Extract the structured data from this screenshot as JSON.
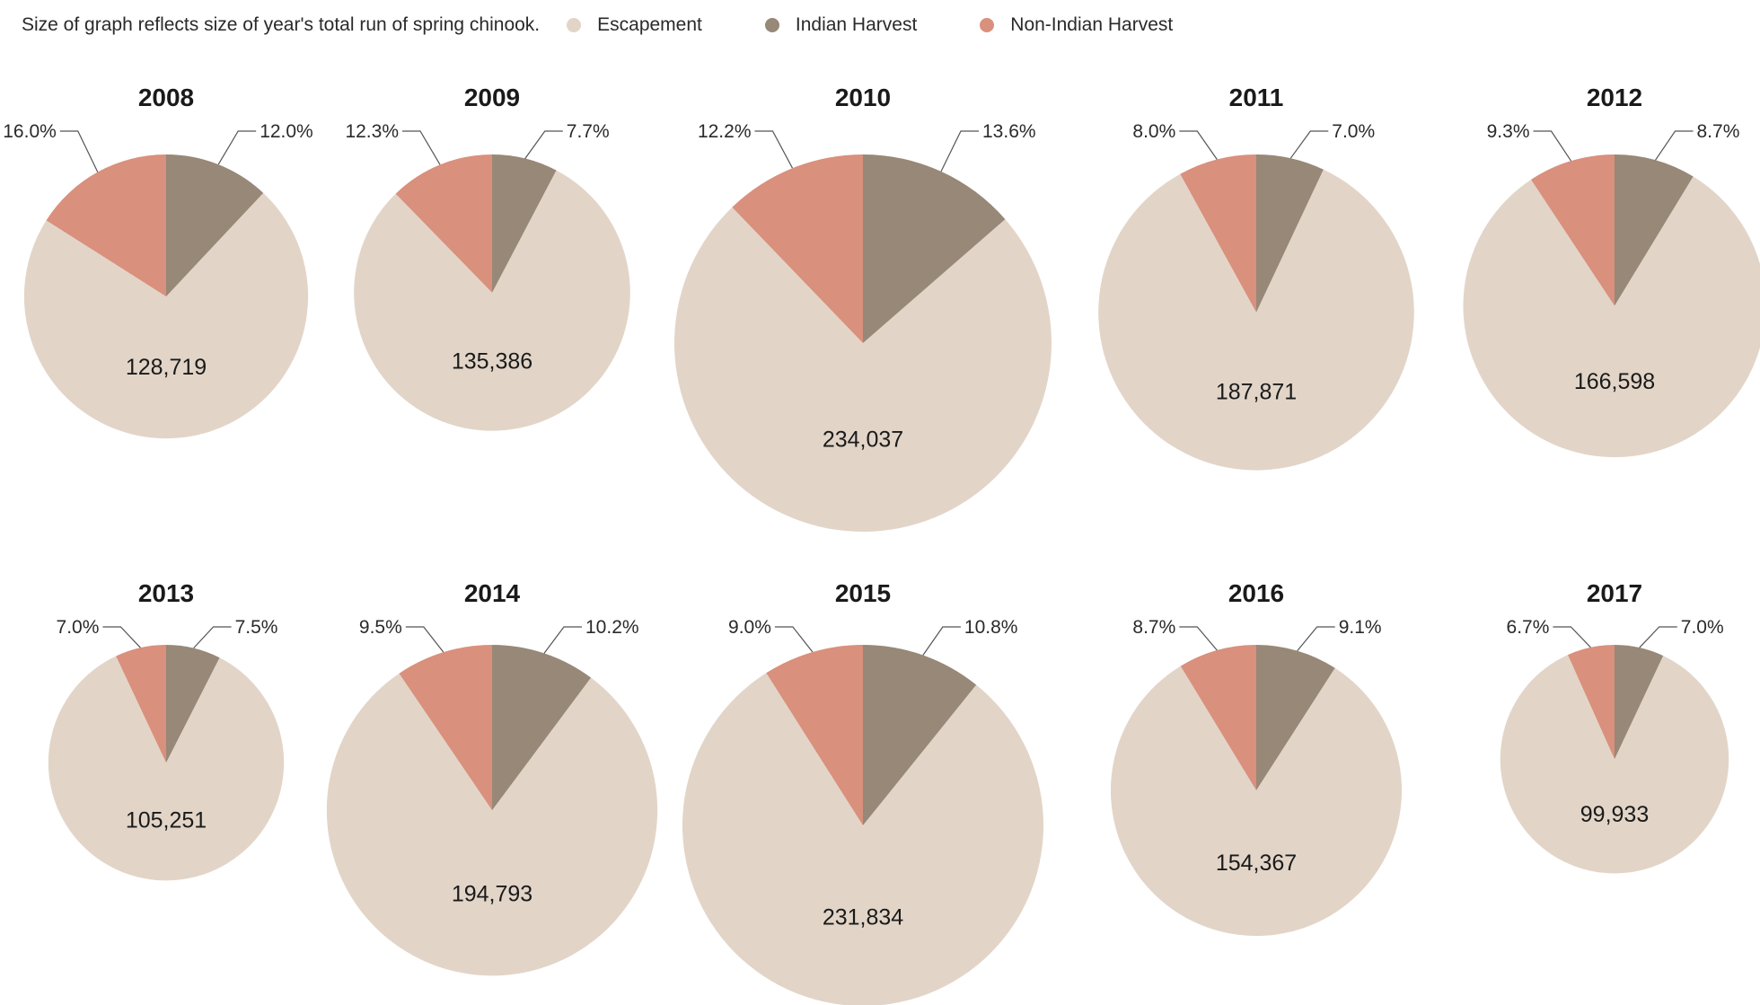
{
  "chart_data": {
    "type": "pie",
    "note": "Size of graph reflects size of year's total run of spring chinook.",
    "legend": [
      {
        "name": "Escapement",
        "color": "#e2d5c8"
      },
      {
        "name": "Indian Harvest",
        "color": "#978878"
      },
      {
        "name": "Non-Indian Harvest",
        "color": "#d9907c"
      }
    ],
    "years": [
      {
        "year": "2008",
        "escapement": "128,719",
        "indian_harvest_pct": 12.0,
        "indian_label": "12.0%",
        "non_indian_harvest_pct": 16.0,
        "non_indian_label": "16.0%"
      },
      {
        "year": "2009",
        "escapement": "135,386",
        "indian_harvest_pct": 7.7,
        "indian_label": "7.7%",
        "non_indian_harvest_pct": 12.3,
        "non_indian_label": "12.3%"
      },
      {
        "year": "2010",
        "escapement": "234,037",
        "indian_harvest_pct": 13.6,
        "indian_label": "13.6%",
        "non_indian_harvest_pct": 12.2,
        "non_indian_label": "12.2%"
      },
      {
        "year": "2011",
        "escapement": "187,871",
        "indian_harvest_pct": 7.0,
        "indian_label": "7.0%",
        "non_indian_harvest_pct": 8.0,
        "non_indian_label": "8.0%"
      },
      {
        "year": "2012",
        "escapement": "166,598",
        "indian_harvest_pct": 8.7,
        "indian_label": "8.7%",
        "non_indian_harvest_pct": 9.3,
        "non_indian_label": "9.3%"
      },
      {
        "year": "2013",
        "escapement": "105,251",
        "indian_harvest_pct": 7.5,
        "indian_label": "7.5%",
        "non_indian_harvest_pct": 7.0,
        "non_indian_label": "7.0%"
      },
      {
        "year": "2014",
        "escapement": "194,793",
        "indian_harvest_pct": 10.2,
        "indian_label": "10.2%",
        "non_indian_harvest_pct": 9.5,
        "non_indian_label": "9.5%"
      },
      {
        "year": "2015",
        "escapement": "231,834",
        "indian_harvest_pct": 10.8,
        "indian_label": "10.8%",
        "non_indian_harvest_pct": 9.0,
        "non_indian_label": "9.0%"
      },
      {
        "year": "2016",
        "escapement": "154,367",
        "indian_harvest_pct": 9.1,
        "indian_label": "9.1%",
        "non_indian_harvest_pct": 8.7,
        "non_indian_label": "8.7%"
      },
      {
        "year": "2017",
        "escapement": "99,933",
        "indian_harvest_pct": 7.0,
        "indian_label": "7.0%",
        "non_indian_harvest_pct": 6.7,
        "non_indian_label": "6.7%"
      }
    ]
  }
}
